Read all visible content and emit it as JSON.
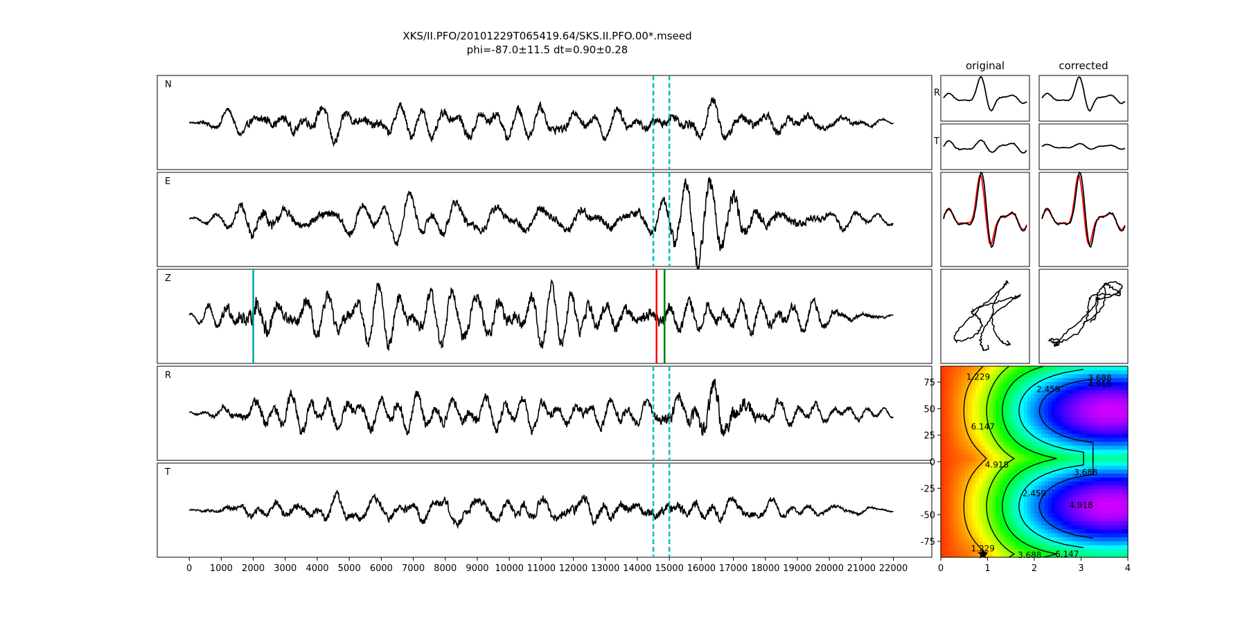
{
  "title": {
    "line1": "XKS/II.PFO/20101229T065419.64/SKS.II.PFO.00*.mseed",
    "line2": "phi=-87.0±11.5 dt=0.90±0.28"
  },
  "chart_data": [
    {
      "type": "line",
      "name_role": "trace-panels",
      "panels": [
        "N",
        "E",
        "Z",
        "R",
        "T"
      ],
      "xlim": [
        -1000,
        23200
      ],
      "xticks": [
        0,
        1000,
        2000,
        3000,
        4000,
        5000,
        6000,
        7000,
        8000,
        9000,
        10000,
        11000,
        12000,
        13000,
        14000,
        15000,
        16000,
        17000,
        18000,
        19000,
        20000,
        21000,
        22000
      ],
      "data_range": [
        0,
        22000
      ],
      "window_lines": [
        14500,
        15000
      ],
      "window_color": "#00bfbf",
      "z_markers": [
        {
          "x": 2000,
          "color": "#00a8a8"
        },
        {
          "x": 14600,
          "color": "#ff0000"
        },
        {
          "x": 14850,
          "color": "#008000"
        }
      ],
      "amplitude_envelope": {
        "N": [
          [
            0,
            0.05
          ],
          [
            700,
            0.2
          ],
          [
            2200,
            0.45
          ],
          [
            14500,
            0.4
          ],
          [
            15000,
            0.45
          ],
          [
            16000,
            0.5
          ],
          [
            20000,
            0.3
          ],
          [
            22000,
            0.05
          ]
        ],
        "E": [
          [
            0,
            0.05
          ],
          [
            1500,
            0.3
          ],
          [
            2200,
            0.65
          ],
          [
            3000,
            0.4
          ],
          [
            14500,
            0.4
          ],
          [
            15000,
            0.7
          ],
          [
            16000,
            0.9
          ],
          [
            18000,
            0.5
          ],
          [
            22000,
            0.1
          ]
        ],
        "Z": [
          [
            0,
            0.05
          ],
          [
            1000,
            0.5
          ],
          [
            2200,
            0.95
          ],
          [
            3000,
            0.6
          ],
          [
            14500,
            0.6
          ],
          [
            16000,
            0.5
          ],
          [
            19000,
            0.5
          ],
          [
            22000,
            0.05
          ]
        ],
        "R": [
          [
            0,
            0.05
          ],
          [
            1500,
            0.3
          ],
          [
            2200,
            0.55
          ],
          [
            14500,
            0.4
          ],
          [
            15200,
            0.7
          ],
          [
            16600,
            0.95
          ],
          [
            18000,
            0.45
          ],
          [
            22000,
            0.1
          ]
        ],
        "T": [
          [
            0,
            0.05
          ],
          [
            1500,
            0.25
          ],
          [
            2500,
            0.35
          ],
          [
            11000,
            0.45
          ],
          [
            14500,
            0.45
          ],
          [
            15000,
            0.5
          ],
          [
            18000,
            0.3
          ],
          [
            22000,
            0.05
          ]
        ]
      },
      "line_color": "#000000"
    },
    {
      "type": "line",
      "name_role": "particle-motion-panels",
      "column_titles": [
        "original",
        "corrected"
      ],
      "row_labels": [
        "R",
        "T",
        "",
        ""
      ],
      "comparison_colors": [
        "#ff0000",
        "#000000"
      ]
    },
    {
      "type": "heatmap",
      "name_role": "error-surface",
      "xlim": [
        0,
        4
      ],
      "ylim": [
        -90,
        90
      ],
      "xticks": [
        0,
        1,
        2,
        3,
        4
      ],
      "yticks": [
        -75,
        -50,
        -25,
        0,
        25,
        50,
        75
      ],
      "contour_labels": [
        "1.229",
        "2.459",
        "3.688",
        "4.918",
        "6.147"
      ],
      "contour_levels": [
        1.229,
        2.459,
        3.688,
        4.918,
        6.147
      ],
      "colormap": "gist_rainbow",
      "best_point": {
        "dt": 0.9,
        "phi": -87.0
      }
    }
  ]
}
